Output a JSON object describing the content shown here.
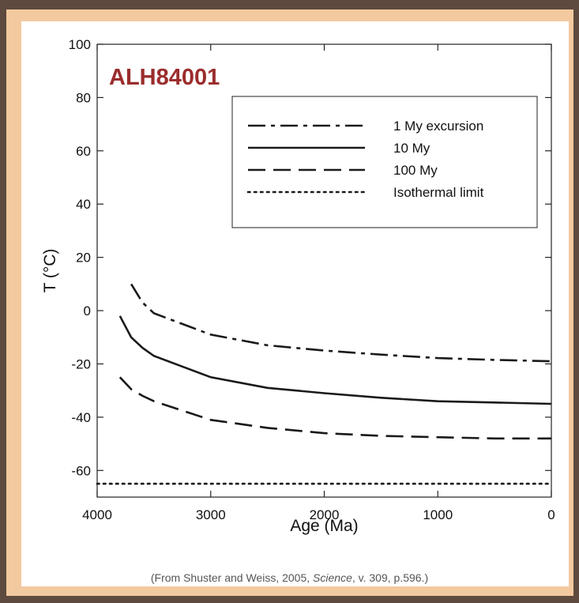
{
  "chart_data": {
    "type": "line",
    "title": "ALH84001",
    "xlabel": "Age (Ma)",
    "ylabel": "T (°C)",
    "xlim": [
      4000,
      0
    ],
    "ylim": [
      -70,
      100
    ],
    "x_reversed": true,
    "xticks": [
      4000,
      3000,
      2000,
      1000,
      0
    ],
    "xtick_labels": [
      "4000",
      "3000",
      "2000",
      "1000",
      "0"
    ],
    "yticks": [
      100,
      80,
      60,
      40,
      20,
      0,
      -20,
      -40,
      -60
    ],
    "ytick_labels": [
      "100",
      "80",
      "60",
      "40",
      "20",
      "0",
      "-20",
      "-40",
      "-60"
    ],
    "grid": false,
    "legend_position": "top-right",
    "title_color": "#9b2d2d",
    "series": [
      {
        "name": "1 My excursion",
        "style": "dash-dot",
        "x": [
          3700,
          3600,
          3500,
          3250,
          3000,
          2500,
          2000,
          1500,
          1000,
          500,
          0
        ],
        "y": [
          10,
          3,
          -1,
          -5,
          -9,
          -13,
          -15,
          -16.5,
          -17.8,
          -18.5,
          -19
        ]
      },
      {
        "name": "10 My",
        "style": "solid",
        "x": [
          3800,
          3700,
          3600,
          3500,
          3250,
          3000,
          2500,
          2000,
          1500,
          1000,
          500,
          0
        ],
        "y": [
          -2,
          -10,
          -14,
          -17,
          -21,
          -25,
          -29,
          -31,
          -32.7,
          -34,
          -34.5,
          -35
        ]
      },
      {
        "name": "100 My",
        "style": "dashed",
        "x": [
          3800,
          3700,
          3600,
          3500,
          3250,
          3000,
          2500,
          2000,
          1500,
          1000,
          500,
          0
        ],
        "y": [
          -25,
          -29.5,
          -32,
          -34,
          -37.5,
          -41,
          -44,
          -46,
          -47,
          -47.5,
          -48,
          -48
        ]
      },
      {
        "name": "Isothermal limit",
        "style": "dotted",
        "x": [
          4000,
          0
        ],
        "y": [
          -65,
          -65
        ]
      }
    ]
  },
  "caption": {
    "prefix": "(From Shuster and Weiss, 2005, ",
    "journal": "Science",
    "suffix": ", v. 309, p.596.)"
  }
}
